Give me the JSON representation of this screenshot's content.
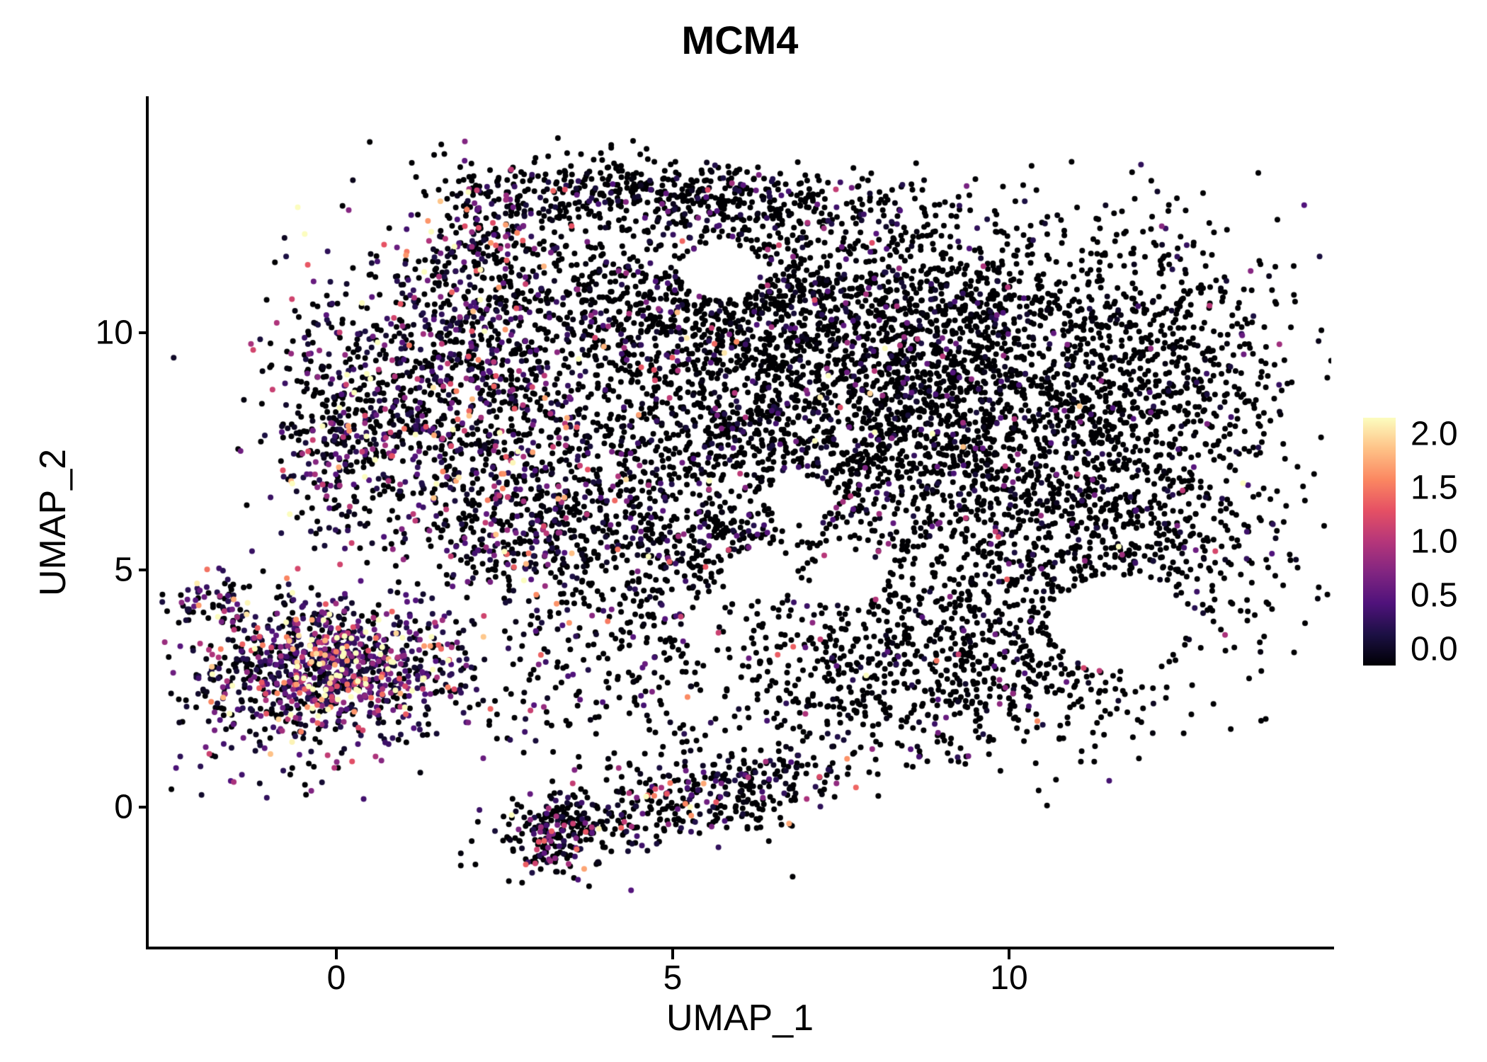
{
  "chart_data": {
    "type": "scatter",
    "title": "MCM4",
    "xlabel": "UMAP_1",
    "ylabel": "UMAP_2",
    "xlim": [
      -2.8,
      14.8
    ],
    "ylim": [
      -2.95,
      14.95
    ],
    "x_ticks": [
      0,
      5,
      10
    ],
    "y_ticks": [
      0,
      5,
      10
    ],
    "x_tick_labels": [
      "0",
      "5",
      "10"
    ],
    "y_tick_labels": [
      "0",
      "5",
      "10"
    ],
    "grid": false,
    "panel_background": "#FFFFFF",
    "point_radius_px": 4,
    "seed": 42,
    "legend": {
      "position": "right",
      "vmin": 0.0,
      "vmax": 2.0,
      "label_values": [
        "2.0",
        "1.5",
        "1.0",
        "0.5",
        "0.0"
      ],
      "colormap": "magma",
      "stops": [
        "#000004",
        "#1C1044",
        "#4F127B",
        "#812581",
        "#B5367A",
        "#E55064",
        "#FB8761",
        "#FEC287",
        "#FCFDBF"
      ]
    },
    "n_points_total": 10680,
    "point_clusters": [
      {
        "name": "top-ridge",
        "cx": 5.2,
        "cy": 12.9,
        "sx": 1.7,
        "sy": 0.4,
        "rot": -6,
        "n": 520,
        "p0": 0.82,
        "scale": 0.32
      },
      {
        "name": "top-left-protrusion",
        "cx": 2.3,
        "cy": 12.0,
        "sx": 0.55,
        "sy": 0.8,
        "rot": 0,
        "n": 210,
        "p0": 0.45,
        "scale": 0.55
      },
      {
        "name": "upper-center",
        "cx": 5.2,
        "cy": 10.7,
        "sx": 1.7,
        "sy": 1.0,
        "rot": 0,
        "n": 850,
        "p0": 0.8,
        "scale": 0.42
      },
      {
        "name": "upper-right",
        "cx": 8.8,
        "cy": 10.4,
        "sx": 1.8,
        "sy": 1.1,
        "rot": 0,
        "n": 950,
        "p0": 0.84,
        "scale": 0.34
      },
      {
        "name": "mid-center",
        "cx": 6.0,
        "cy": 8.0,
        "sx": 1.9,
        "sy": 1.2,
        "rot": 0,
        "n": 1050,
        "p0": 0.8,
        "scale": 0.4
      },
      {
        "name": "mid-right",
        "cx": 9.4,
        "cy": 8.2,
        "sx": 1.5,
        "sy": 1.3,
        "rot": 0,
        "n": 1100,
        "p0": 0.86,
        "scale": 0.32
      },
      {
        "name": "far-right",
        "cx": 12.3,
        "cy": 8.6,
        "sx": 0.95,
        "sy": 1.8,
        "rot": 0,
        "n": 650,
        "p0": 0.88,
        "scale": 0.3
      },
      {
        "name": "right-mid-low",
        "cx": 11.0,
        "cy": 5.5,
        "sx": 1.5,
        "sy": 1.0,
        "rot": 0,
        "n": 520,
        "p0": 0.86,
        "scale": 0.32
      },
      {
        "name": "lower-right-mass",
        "cx": 9.0,
        "cy": 3.1,
        "sx": 1.9,
        "sy": 1.15,
        "rot": 0,
        "n": 900,
        "p0": 0.86,
        "scale": 0.32
      },
      {
        "name": "left-arm",
        "cx": 1.6,
        "cy": 9.0,
        "sx": 1.2,
        "sy": 1.4,
        "rot": 0,
        "n": 850,
        "p0": 0.52,
        "scale": 0.5
      },
      {
        "name": "left-edge",
        "cx": 0.2,
        "cy": 7.8,
        "sx": 0.55,
        "sy": 1.0,
        "rot": 0,
        "n": 300,
        "p0": 0.45,
        "scale": 0.55
      },
      {
        "name": "arm-lower",
        "cx": 2.7,
        "cy": 6.2,
        "sx": 0.9,
        "sy": 0.9,
        "rot": 0,
        "n": 420,
        "p0": 0.62,
        "scale": 0.48
      },
      {
        "name": "center-low-strip",
        "cx": 5.2,
        "cy": 5.6,
        "sx": 1.3,
        "sy": 0.6,
        "rot": 0,
        "n": 330,
        "p0": 0.78,
        "scale": 0.42
      },
      {
        "name": "diag-bridge",
        "cx": 3.9,
        "cy": 3.7,
        "sx": 0.9,
        "sy": 1.0,
        "rot": 0,
        "n": 190,
        "p0": 0.6,
        "scale": 0.55
      },
      {
        "name": "left-cluster-core",
        "cx": 0.1,
        "cy": 2.95,
        "sx": 0.7,
        "sy": 0.6,
        "rot": 0,
        "n": 560,
        "p0": 0.15,
        "scale": 0.8,
        "vfloor": 0.15
      },
      {
        "name": "left-cluster-outer",
        "cx": -0.7,
        "cy": 2.7,
        "sx": 0.85,
        "sy": 0.95,
        "rot": 0,
        "n": 480,
        "p0": 0.35,
        "scale": 0.55
      },
      {
        "name": "left-wisp",
        "cx": -1.75,
        "cy": 4.35,
        "sx": 0.33,
        "sy": 0.3,
        "rot": 0,
        "n": 60,
        "p0": 0.4,
        "scale": 0.55
      },
      {
        "name": "left-fringe",
        "cx": 1.35,
        "cy": 3.1,
        "sx": 0.5,
        "sy": 0.7,
        "rot": 0,
        "n": 90,
        "p0": 0.3,
        "scale": 0.8
      },
      {
        "name": "bottom-band",
        "cx": 4.7,
        "cy": 0.0,
        "sx": 1.35,
        "sy": 0.4,
        "rot": 14,
        "n": 320,
        "p0": 0.7,
        "scale": 0.45
      },
      {
        "name": "bottom-blob",
        "cx": 3.35,
        "cy": -0.55,
        "sx": 0.38,
        "sy": 0.5,
        "rot": 0,
        "n": 170,
        "p0": 0.55,
        "scale": 0.5
      },
      {
        "name": "bottom-right-tail",
        "cx": 6.3,
        "cy": 0.35,
        "sx": 0.5,
        "sy": 0.5,
        "rot": 0,
        "n": 90,
        "p0": 0.75,
        "scale": 0.4
      },
      {
        "name": "sparse-mid",
        "cx": 4.0,
        "cy": 1.6,
        "sx": 1.8,
        "sy": 0.6,
        "rot": 0,
        "n": 70,
        "p0": 0.72,
        "scale": 0.45
      }
    ],
    "holes": [
      {
        "x": 11.65,
        "y": 3.9,
        "r": 1.0
      },
      {
        "x": 6.9,
        "y": 6.5,
        "r": 0.5
      },
      {
        "x": 5.7,
        "y": 11.3,
        "r": 0.6
      },
      {
        "x": 6.3,
        "y": 4.9,
        "r": 0.55
      },
      {
        "x": 7.6,
        "y": 4.8,
        "r": 0.55
      }
    ]
  }
}
